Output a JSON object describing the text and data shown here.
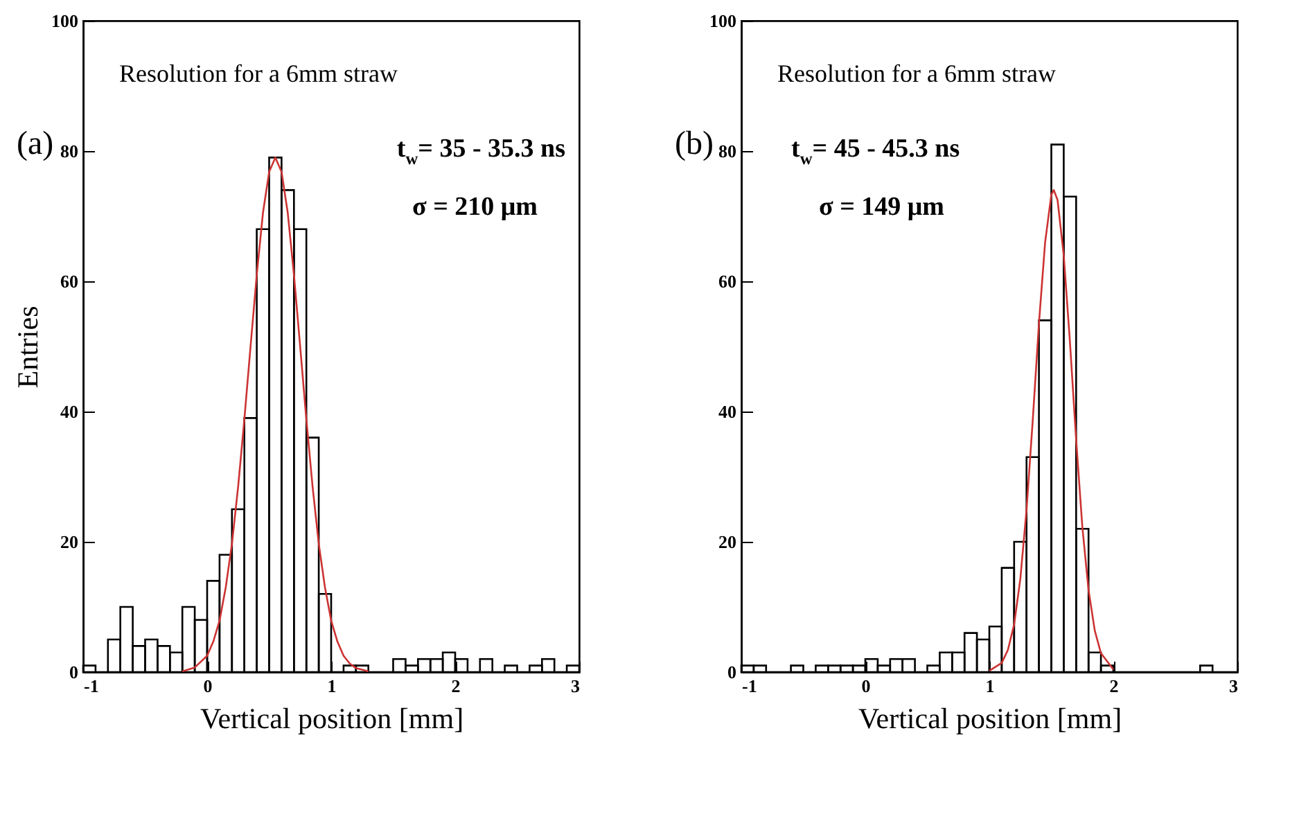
{
  "chart_data": [
    {
      "type": "histogram",
      "xlabel": "Vertical position [mm]",
      "ylabel": "Entries",
      "annotations": [
        "(a)",
        "Resolution for a 6mm straw",
        "t$_{w}$= 35 - 35.3 ns",
        "σ = 210 μm"
      ],
      "bins": [
        -1.0,
        -0.9,
        -0.8,
        -0.7,
        -0.6,
        -0.5,
        -0.4,
        -0.3,
        -0.2,
        -0.1,
        0.0,
        0.1,
        0.2,
        0.3,
        0.4,
        0.5,
        0.6,
        0.7,
        0.8,
        0.9,
        1.0,
        1.1,
        1.2,
        1.3,
        1.4,
        1.5,
        1.6,
        1.7,
        1.8,
        1.9,
        2.0,
        2.1,
        2.2,
        2.3,
        2.4,
        2.5,
        2.6,
        2.7,
        2.8,
        2.9,
        3.0
      ],
      "values": [
        1,
        0,
        5,
        10,
        4,
        5,
        4,
        3,
        10,
        8,
        14,
        18,
        25,
        39,
        68,
        79,
        74,
        68,
        36,
        12,
        0,
        1,
        1,
        0,
        0,
        2,
        1,
        2,
        2,
        3,
        2,
        0,
        2,
        0,
        1,
        0,
        1,
        2,
        0,
        1
      ],
      "color": "#000000",
      "series": [
        {
          "type": "line",
          "color": "#cc3333",
          "x": [
            -0.2,
            -0.1,
            0.0,
            0.05,
            0.1,
            0.15,
            0.2,
            0.25,
            0.3,
            0.35,
            0.4,
            0.45,
            0.5,
            0.55,
            0.6,
            0.65,
            0.7,
            0.75,
            0.8,
            0.85,
            0.9,
            0.95,
            1.0,
            1.05,
            1.1,
            1.15,
            1.2,
            1.3
          ],
          "values": [
            0.1,
            0.7,
            2.5,
            4.7,
            7.9,
            13,
            19.7,
            28.5,
            38.8,
            50,
            61,
            70.5,
            76.8,
            79,
            76.8,
            70.5,
            61,
            50,
            38.8,
            28.5,
            19.7,
            13,
            7.9,
            4.7,
            2.5,
            1.3,
            0.6,
            0.1
          ]
        }
      ],
      "xlim": [
        -1,
        3
      ],
      "xticks": [
        -1,
        0,
        1,
        2,
        3
      ],
      "ylim": [
        0,
        100
      ],
      "yticks": [
        0,
        20,
        40,
        60,
        80,
        100
      ]
    },
    {
      "type": "histogram",
      "xlabel": "Vertical position [mm]",
      "annotations": [
        "(b)",
        "Resolution for a 6mm straw",
        "t$_{w}$= 45 - 45.3 ns",
        "σ = 149 μm"
      ],
      "bins": [
        -1.0,
        -0.9,
        -0.8,
        -0.7,
        -0.6,
        -0.5,
        -0.4,
        -0.3,
        -0.2,
        -0.1,
        0.0,
        0.1,
        0.2,
        0.3,
        0.4,
        0.5,
        0.6,
        0.7,
        0.8,
        0.9,
        1.0,
        1.1,
        1.2,
        1.3,
        1.4,
        1.5,
        1.6,
        1.7,
        1.8,
        1.9,
        2.0,
        2.1,
        2.2,
        2.3,
        2.4,
        2.5,
        2.6,
        2.7,
        2.8,
        2.9,
        3.0
      ],
      "values": [
        1,
        1,
        0,
        0,
        1,
        0,
        1,
        1,
        1,
        1,
        2,
        1,
        2,
        2,
        0,
        1,
        3,
        3,
        6,
        5,
        7,
        16,
        20,
        33,
        54,
        81,
        73,
        22,
        3,
        1,
        0,
        0,
        0,
        0,
        0,
        0,
        0,
        1,
        0,
        0
      ],
      "color": "#000000",
      "series": [
        {
          "type": "line",
          "color": "#cc3333",
          "x": [
            1.0,
            1.1,
            1.15,
            1.2,
            1.25,
            1.3,
            1.35,
            1.4,
            1.45,
            1.5,
            1.52,
            1.55,
            1.6,
            1.65,
            1.7,
            1.75,
            1.8,
            1.85,
            1.9,
            2.0
          ],
          "values": [
            0.2,
            1.4,
            3.4,
            7.3,
            14.3,
            24.9,
            38.6,
            53.5,
            66,
            73.3,
            74,
            72.5,
            64,
            50.7,
            35.7,
            22.3,
            12.6,
            6.4,
            2.9,
            0.4
          ]
        }
      ],
      "xlim": [
        -1,
        3
      ],
      "xticks": [
        -1,
        0,
        1,
        2,
        3
      ],
      "ylim": [
        0,
        100
      ],
      "yticks": [
        0,
        20,
        40,
        60,
        80,
        100
      ]
    }
  ]
}
